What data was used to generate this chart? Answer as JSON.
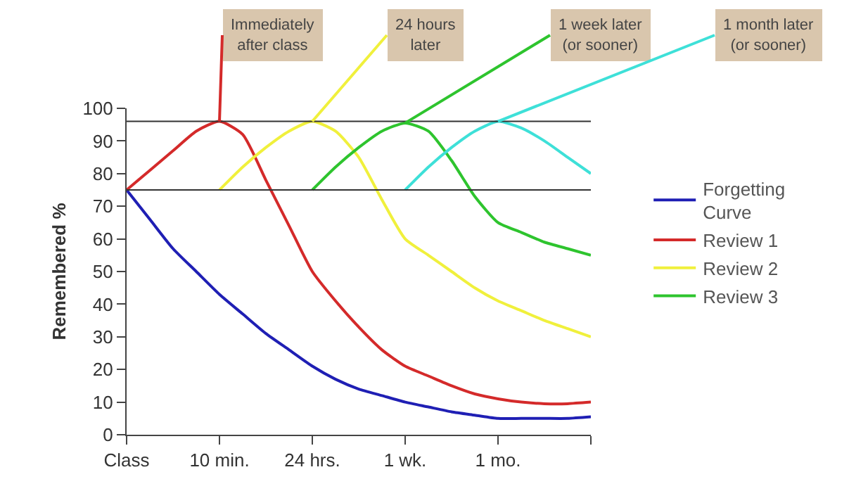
{
  "chart_data": {
    "type": "line",
    "ylabel": "Remembered %",
    "categories": [
      "Class",
      null,
      null,
      null,
      "10 min.",
      null,
      null,
      null,
      "24 hrs.",
      null,
      null,
      null,
      "1 wk.",
      null,
      null,
      null,
      "1 mo.",
      null,
      null,
      null,
      null
    ],
    "ylim": [
      0,
      100
    ],
    "yticks": [
      0,
      10,
      20,
      30,
      40,
      50,
      60,
      70,
      80,
      90,
      100
    ],
    "grid": false,
    "legend": "right",
    "marker": "none",
    "line_style": "solid",
    "series": [
      {
        "name": "Forgetting Curve",
        "color": "#1f1fb4",
        "values": [
          75,
          66,
          57,
          50,
          43,
          37,
          31,
          26,
          21,
          17,
          14,
          12,
          10,
          8.5,
          7,
          6,
          5,
          5,
          5,
          5,
          5.5
        ]
      },
      {
        "name": "Review 1",
        "color": "#d42a2a",
        "values": [
          75,
          81,
          87,
          93,
          96,
          92,
          78,
          64,
          50,
          41,
          33,
          26,
          21,
          18,
          15,
          12.5,
          11,
          10,
          9.5,
          9.5,
          10
        ]
      },
      {
        "name": "Review 2",
        "color": "#f0f03c",
        "values": [
          null,
          null,
          null,
          null,
          75,
          82,
          88,
          93,
          96,
          93,
          85,
          72,
          60,
          55,
          50,
          45,
          41,
          38,
          35,
          32.5,
          30
        ]
      },
      {
        "name": "Review 3",
        "color": "#2ec42e",
        "values": [
          null,
          null,
          null,
          null,
          null,
          null,
          null,
          null,
          75,
          82,
          88,
          93,
          95.5,
          93,
          84,
          73,
          65,
          62,
          59,
          57,
          55
        ]
      },
      {
        "color": "#3ee0d8",
        "values": [
          null,
          null,
          null,
          null,
          null,
          null,
          null,
          null,
          null,
          null,
          null,
          null,
          75,
          82,
          88,
          93,
          96,
          94,
          90,
          85,
          80
        ]
      }
    ],
    "ref_lines": [
      {
        "axis": "y",
        "value": 75,
        "color": "#333333"
      },
      {
        "axis": "y",
        "value": 96,
        "color": "#333333"
      }
    ],
    "annotations": [
      {
        "text": "Immediately\nafter class",
        "x": "10 min.",
        "y": 96
      },
      {
        "text": "24 hours\nlater",
        "x": "24 hrs.",
        "y": 96
      },
      {
        "text": "1 week later\n(or sooner)",
        "x": "1 wk.",
        "y": 95.5
      },
      {
        "text": "1 month later\n(or sooner)",
        "x": "1 mo.",
        "y": 96
      }
    ]
  }
}
